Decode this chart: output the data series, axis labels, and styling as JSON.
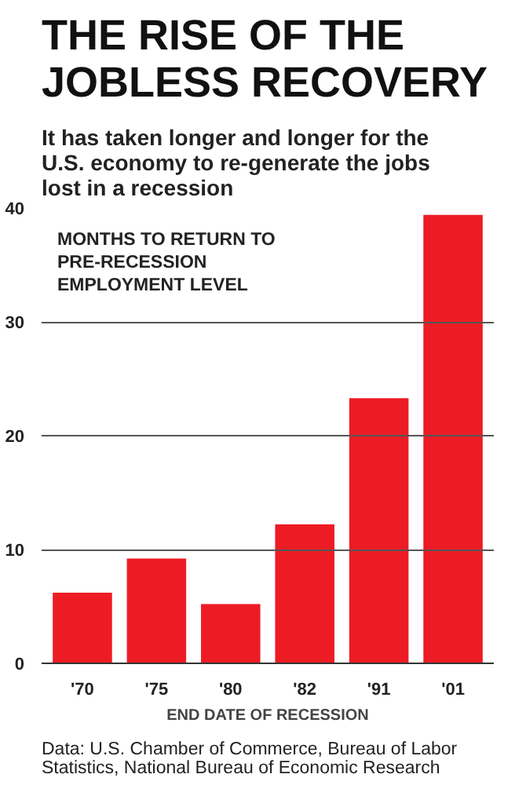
{
  "chart_data": {
    "type": "bar",
    "title": "THE RISE OF THE JOBLESS RECOVERY",
    "subtitle": "It has taken longer and longer for the U.S. economy to re-generate the jobs lost in a recession",
    "xlabel": "END DATE OF RECESSION",
    "categories": [
      "'70",
      "'75",
      "'80",
      "'82",
      "'91",
      "'01"
    ],
    "values": [
      6.2,
      9.2,
      5.2,
      12.2,
      23.3,
      39.4
    ],
    "color": "#ed1c24",
    "ylim": [
      0,
      40
    ],
    "yticks": [
      0,
      10,
      20,
      30,
      40
    ],
    "grid": "y",
    "annotations": [
      "MONTHS TO RETURN TO PRE-RECESSION EMPLOYMENT LEVEL",
      "Data: U.S. Chamber of Commerce, Bureau of Labor Statistics, National Bureau of Economic Research"
    ]
  }
}
